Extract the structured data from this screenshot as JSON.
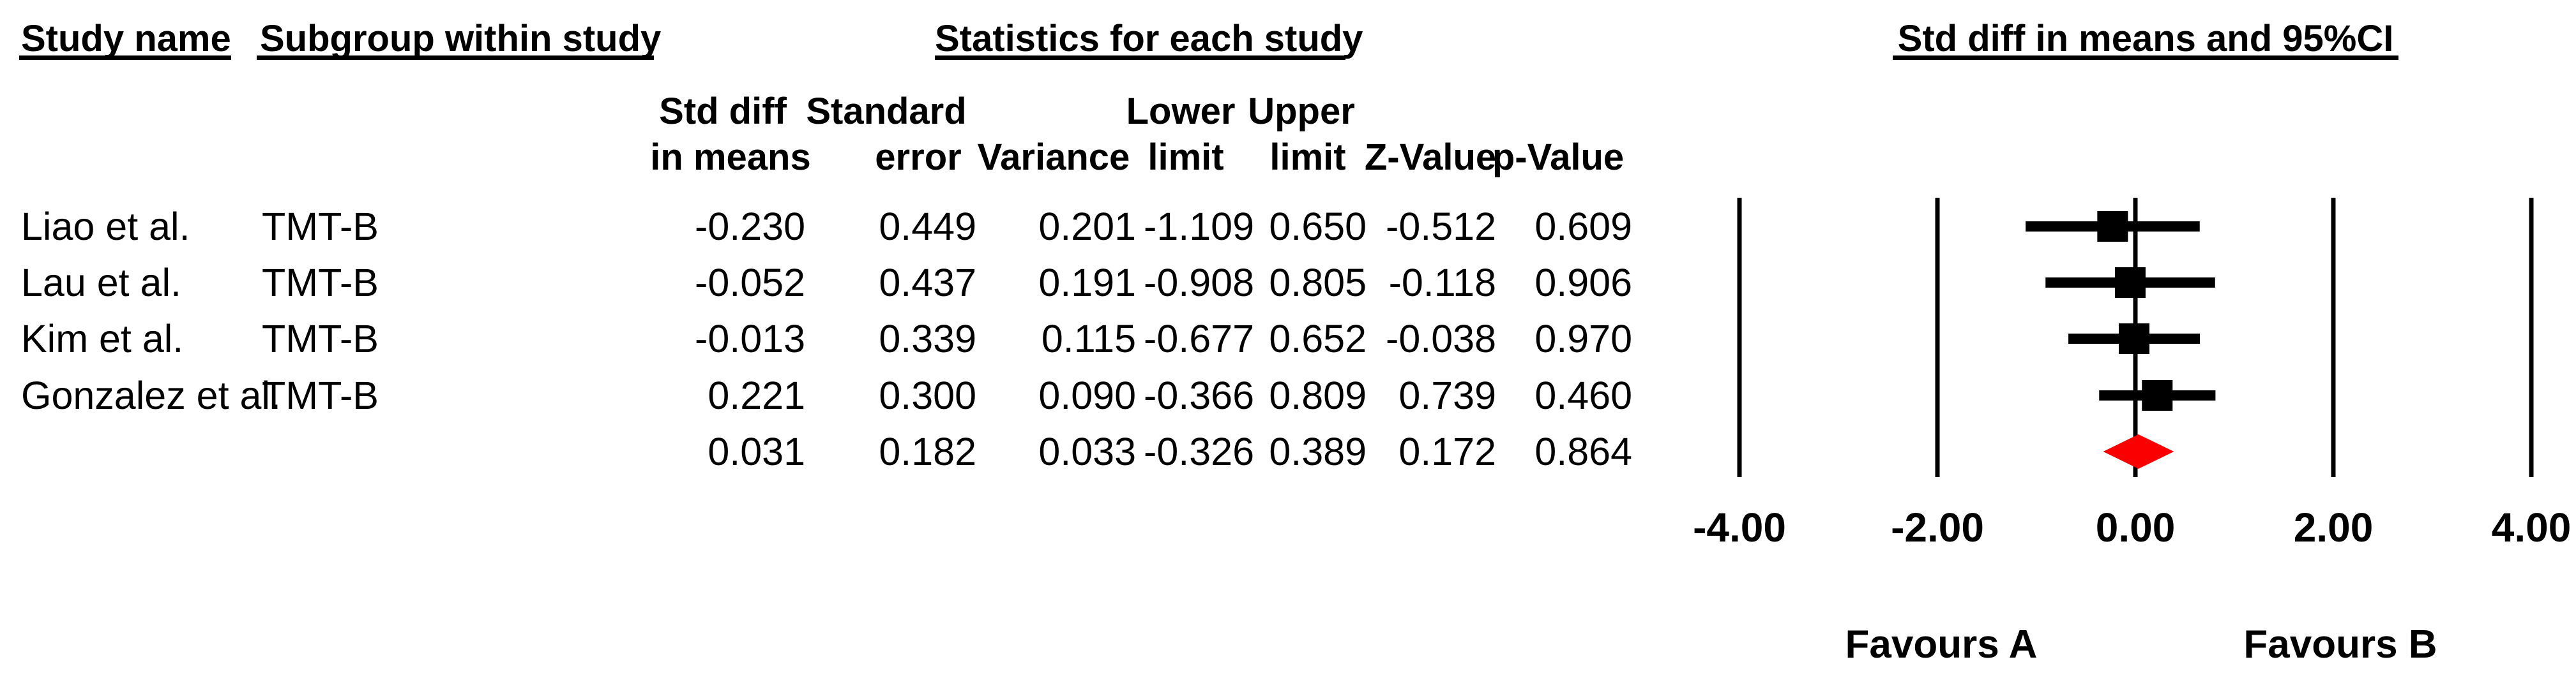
{
  "headers": {
    "study_name": "Study name",
    "subgroup": "Subgroup within study",
    "statistics": "Statistics for each study",
    "plot": "Std diff in means and 95%CI"
  },
  "table": {
    "col_headers_line1": [
      "Std diff",
      "Standard",
      "Lower",
      "Upper"
    ],
    "col_headers_line2": [
      "in means",
      "error",
      "Variance",
      "limit",
      "limit",
      "Z-Value",
      "p-Value"
    ]
  },
  "chart_data": {
    "type": "forest",
    "title": "Std diff in means and 95%CI",
    "effect_measure": "Std diff in means",
    "studies": [
      {
        "study": "Liao et al.",
        "subgroup": "TMT-B",
        "std_diff": -0.23,
        "std_err": 0.449,
        "variance": 0.201,
        "lower": -1.109,
        "upper": 0.65,
        "z": -0.512,
        "p": 0.609
      },
      {
        "study": "Lau et al.",
        "subgroup": "TMT-B",
        "std_diff": -0.052,
        "std_err": 0.437,
        "variance": 0.191,
        "lower": -0.908,
        "upper": 0.805,
        "z": -0.118,
        "p": 0.906
      },
      {
        "study": "Kim et al.",
        "subgroup": "TMT-B",
        "std_diff": -0.013,
        "std_err": 0.339,
        "variance": 0.115,
        "lower": -0.677,
        "upper": 0.652,
        "z": -0.038,
        "p": 0.97
      },
      {
        "study": "Gonzalez et al.",
        "subgroup": "TMT-B",
        "std_diff": 0.221,
        "std_err": 0.3,
        "variance": 0.09,
        "lower": -0.366,
        "upper": 0.809,
        "z": 0.739,
        "p": 0.46
      }
    ],
    "summary": {
      "std_diff": 0.031,
      "std_err": 0.182,
      "variance": 0.033,
      "lower": -0.326,
      "upper": 0.389,
      "z": 0.172,
      "p": 0.864
    },
    "x_axis": {
      "values": [
        -4,
        -2,
        0,
        2,
        4
      ],
      "tick_labels": [
        "-4.00",
        "-2.00",
        "0.00",
        "2.00",
        "4.00"
      ],
      "min": -4,
      "max": 4,
      "grid": true
    },
    "footer": {
      "left": "Favours A",
      "right": "Favours B"
    },
    "colors": {
      "marker": "#000000",
      "diamond": "#fb0000",
      "gridline": "#000000"
    },
    "legend_position": "none"
  }
}
